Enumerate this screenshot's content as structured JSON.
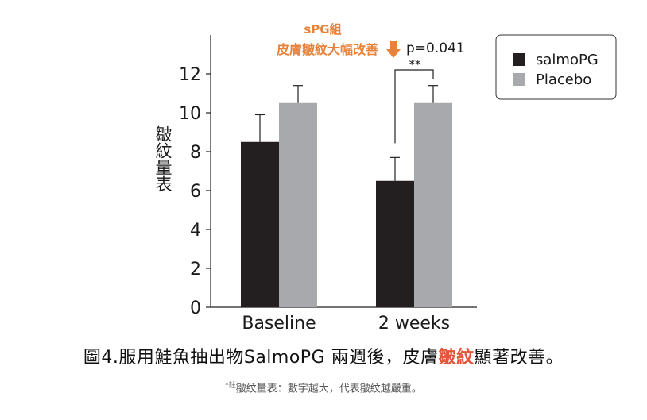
{
  "chart_data": {
    "type": "bar",
    "categories": [
      "Baseline",
      "2 weeks"
    ],
    "series": [
      {
        "name": "salmoPG",
        "color": "#231f20",
        "values": [
          8.5,
          6.5
        ],
        "error": [
          1.4,
          1.2
        ]
      },
      {
        "name": "Placebo",
        "color": "#a7a9ac",
        "values": [
          10.5,
          10.5
        ],
        "error": [
          0.9,
          0.9
        ]
      }
    ],
    "ylabel": "皺紋量表",
    "ylim": [
      0,
      14
    ],
    "yticks": [
      0,
      2,
      4,
      6,
      8,
      10,
      12
    ],
    "legend_position": "top-right",
    "annotation": {
      "line1": "sPG組",
      "line2": "皮膚皺紋大幅改善",
      "pvalue": "p=0.041",
      "stars": "**",
      "accent_color": "#e8823a"
    }
  },
  "caption": {
    "prefix": "圖4.服用鮭魚抽出物SalmoPG 兩週後，皮膚",
    "highlight": "皺紋",
    "suffix": "顯著改善。"
  },
  "note": {
    "mark": "*註",
    "text": "皺紋量表：數字越大，代表皺紋越嚴重。"
  }
}
